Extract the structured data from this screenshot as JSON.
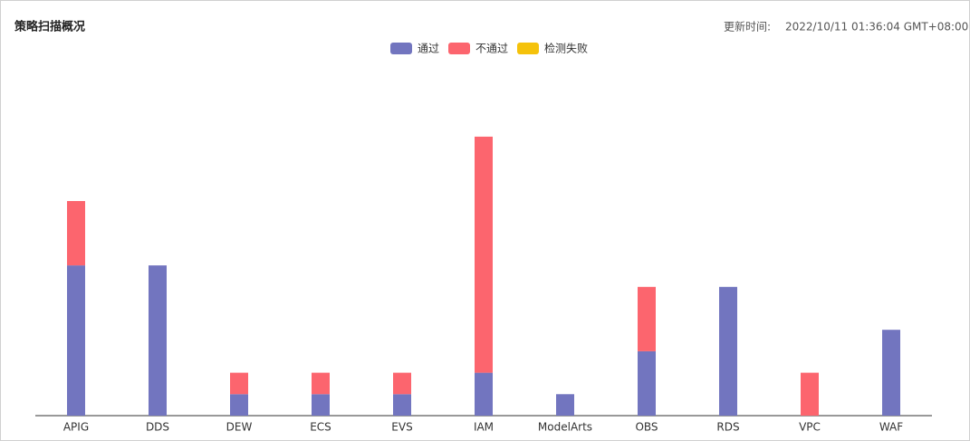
{
  "chart_data": {
    "type": "bar",
    "title": "策略扫描概况",
    "update_label": "更新时间:",
    "update_time": "2022/10/11 01:36:04 GMT+08:00",
    "categories": [
      "APIG",
      "DDS",
      "DEW",
      "ECS",
      "EVS",
      "IAM",
      "ModelArts",
      "OBS",
      "RDS",
      "VPC",
      "WAF"
    ],
    "stacked": true,
    "series": [
      {
        "name": "通过",
        "color": "#7275bf",
        "values": [
          7,
          7,
          1,
          1,
          1,
          2,
          1,
          3,
          6,
          0,
          4
        ]
      },
      {
        "name": "不通过",
        "color": "#fc656e",
        "values": [
          3,
          0,
          1,
          1,
          1,
          11,
          0,
          3,
          0,
          2,
          0
        ]
      },
      {
        "name": "检测失败",
        "color": "#f5c20b",
        "values": [
          0,
          0,
          0,
          0,
          0,
          0,
          0,
          0,
          0,
          0,
          0
        ]
      }
    ]
  }
}
